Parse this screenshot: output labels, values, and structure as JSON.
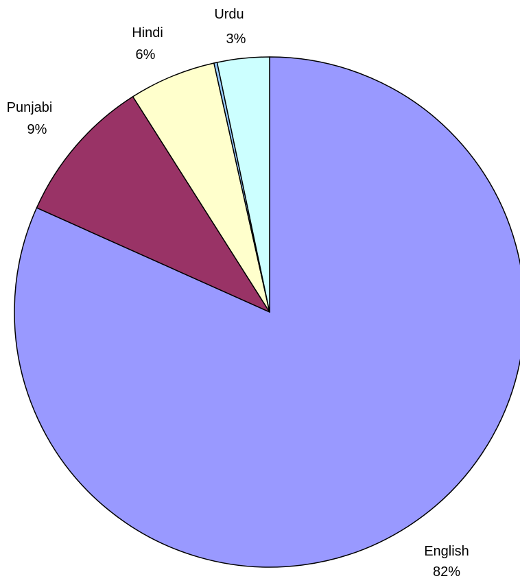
{
  "chart_data": {
    "type": "pie",
    "title": "",
    "start": "12 o'clock",
    "direction": "clockwise",
    "slices": [
      {
        "label": "English",
        "percent_label": "82%",
        "value": 81.7,
        "color": "#9999ff"
      },
      {
        "label": "Punjabi",
        "percent_label": "9%",
        "value": 9.3,
        "color": "#993366"
      },
      {
        "label": "Hindi",
        "percent_label": "6%",
        "value": 5.5,
        "color": "#ffffcc"
      },
      {
        "label": "",
        "percent_label": "",
        "value": 0.2,
        "color": "#99ccff"
      },
      {
        "label": "Urdu",
        "percent_label": "3%",
        "value": 3.3,
        "color": "#ccffff"
      }
    ]
  }
}
